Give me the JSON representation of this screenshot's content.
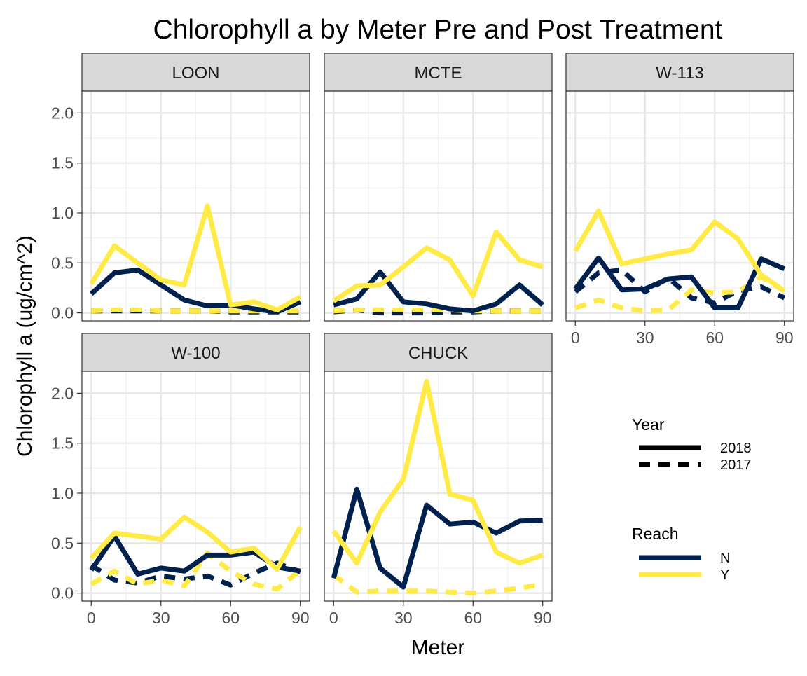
{
  "chart_data": {
    "type": "line",
    "title": "Chlorophyll a by Meter Pre and Post Treatment",
    "xlabel": "Meter",
    "ylabel": "Chlorophyll a (ug/cm^2)",
    "xlim": [
      -4,
      94
    ],
    "ylim": [
      -0.08,
      2.22
    ],
    "x_ticks": [
      0,
      30,
      60,
      90
    ],
    "y_ticks": [
      0.0,
      0.5,
      1.0,
      1.5,
      2.0
    ],
    "x_tick_labels": [
      "0",
      "30",
      "60",
      "90"
    ],
    "y_tick_labels": [
      "0.0",
      "0.5",
      "1.0",
      "1.5",
      "2.0"
    ],
    "grid": true,
    "legend_position": "right",
    "legend": {
      "year": {
        "title": "Year",
        "entries": [
          {
            "label": "2018",
            "style": "solid"
          },
          {
            "label": "2017",
            "style": "dashed"
          }
        ]
      },
      "reach": {
        "title": "Reach",
        "entries": [
          {
            "label": "N",
            "color": "#00204D"
          },
          {
            "label": "Y",
            "color": "#FFEA46"
          }
        ]
      }
    },
    "colors": {
      "N": "#00204D",
      "Y": "#FFEA46"
    },
    "facets": [
      {
        "name": "LOON",
        "series": [
          {
            "reach": "N",
            "year": "2017",
            "x": [
              0,
              10,
              20,
              30,
              40,
              50,
              60,
              70,
              80,
              90
            ],
            "y": [
              0.02,
              0.02,
              0.02,
              0.02,
              0.02,
              0.02,
              0.01,
              0.01,
              0.01,
              0.01
            ]
          },
          {
            "reach": "Y",
            "year": "2017",
            "x": [
              0,
              10,
              20,
              30,
              40,
              50,
              60,
              70,
              80,
              90
            ],
            "y": [
              0.02,
              0.03,
              0.03,
              0.02,
              0.02,
              0.02,
              0.02,
              0.02,
              0.02,
              0.02
            ]
          },
          {
            "reach": "N",
            "year": "2018",
            "x": [
              0,
              10,
              20,
              30,
              40,
              50,
              60,
              70,
              80,
              90
            ],
            "y": [
              0.19,
              0.4,
              0.43,
              0.28,
              0.13,
              0.07,
              0.08,
              0.04,
              0.01,
              0.11
            ]
          },
          {
            "reach": "Y",
            "year": "2018",
            "x": [
              0,
              10,
              20,
              30,
              40,
              50,
              60,
              70,
              80,
              90
            ],
            "y": [
              0.29,
              0.67,
              0.5,
              0.33,
              0.28,
              1.07,
              0.08,
              0.11,
              0.03,
              0.16
            ]
          }
        ]
      },
      {
        "name": "MCTE",
        "series": [
          {
            "reach": "N",
            "year": "2017",
            "x": [
              0,
              10,
              20,
              30,
              40,
              50,
              60,
              70,
              80,
              90
            ],
            "y": [
              0.01,
              0.03,
              0.0,
              0.0,
              0.0,
              0.01,
              0.01,
              0.02,
              0.02,
              0.02
            ]
          },
          {
            "reach": "Y",
            "year": "2017",
            "x": [
              0,
              10,
              20,
              30,
              40,
              50,
              60,
              70,
              80,
              90
            ],
            "y": [
              0.02,
              0.03,
              0.03,
              0.03,
              0.03,
              0.03,
              0.02,
              0.02,
              0.02,
              0.02
            ]
          },
          {
            "reach": "N",
            "year": "2018",
            "x": [
              0,
              10,
              20,
              30,
              40,
              50,
              60,
              70,
              80,
              90
            ],
            "y": [
              0.08,
              0.14,
              0.41,
              0.11,
              0.09,
              0.04,
              0.02,
              0.09,
              0.28,
              0.08
            ]
          },
          {
            "reach": "Y",
            "year": "2018",
            "x": [
              0,
              10,
              20,
              30,
              40,
              50,
              60,
              70,
              80,
              90
            ],
            "y": [
              0.12,
              0.27,
              0.28,
              0.46,
              0.65,
              0.53,
              0.17,
              0.81,
              0.53,
              0.46
            ]
          }
        ]
      },
      {
        "name": "W-113",
        "series": [
          {
            "reach": "N",
            "year": "2017",
            "x": [
              0,
              10,
              20,
              30,
              40,
              50,
              60,
              70,
              80,
              90
            ],
            "y": [
              0.21,
              0.4,
              0.43,
              0.21,
              0.35,
              0.15,
              0.1,
              0.22,
              0.26,
              0.15
            ]
          },
          {
            "reach": "Y",
            "year": "2017",
            "x": [
              0,
              10,
              20,
              30,
              40,
              50,
              60,
              70,
              80,
              90
            ],
            "y": [
              0.05,
              0.13,
              0.05,
              0.02,
              0.03,
              0.23,
              0.2,
              0.21,
              0.36,
              0.22
            ]
          },
          {
            "reach": "N",
            "year": "2018",
            "x": [
              0,
              10,
              20,
              30,
              40,
              50,
              60,
              70,
              80,
              90
            ],
            "y": [
              0.24,
              0.55,
              0.23,
              0.24,
              0.34,
              0.36,
              0.05,
              0.05,
              0.54,
              0.44
            ]
          },
          {
            "reach": "Y",
            "year": "2018",
            "x": [
              0,
              10,
              20,
              30,
              40,
              50,
              60,
              70,
              80,
              90
            ],
            "y": [
              0.62,
              1.02,
              0.49,
              0.54,
              0.59,
              0.63,
              0.91,
              0.74,
              0.38,
              0.22
            ]
          }
        ]
      },
      {
        "name": "W-100",
        "series": [
          {
            "reach": "N",
            "year": "2017",
            "x": [
              0,
              10,
              20,
              30,
              40,
              50,
              60,
              70,
              80,
              90
            ],
            "y": [
              0.28,
              0.13,
              0.1,
              0.17,
              0.14,
              0.17,
              0.08,
              0.2,
              0.3,
              0.21
            ]
          },
          {
            "reach": "Y",
            "year": "2017",
            "x": [
              0,
              10,
              20,
              30,
              40,
              50,
              60,
              70,
              80,
              90
            ],
            "y": [
              0.09,
              0.22,
              0.09,
              0.13,
              0.07,
              0.4,
              0.22,
              0.09,
              0.04,
              0.23
            ]
          },
          {
            "reach": "N",
            "year": "2018",
            "x": [
              0,
              10,
              20,
              30,
              40,
              50,
              60,
              70,
              80,
              90
            ],
            "y": [
              0.23,
              0.57,
              0.19,
              0.25,
              0.22,
              0.38,
              0.38,
              0.41,
              0.26,
              0.22
            ]
          },
          {
            "reach": "Y",
            "year": "2018",
            "x": [
              0,
              10,
              20,
              30,
              40,
              50,
              60,
              70,
              80,
              90
            ],
            "y": [
              0.35,
              0.6,
              0.57,
              0.54,
              0.76,
              0.61,
              0.41,
              0.45,
              0.24,
              0.66
            ]
          }
        ]
      },
      {
        "name": "CHUCK",
        "series": [
          {
            "reach": "Y",
            "year": "2017",
            "x": [
              0,
              10,
              20,
              30,
              40,
              50,
              60,
              70,
              80,
              90
            ],
            "y": [
              0.18,
              0.01,
              0.02,
              0.02,
              0.02,
              0.01,
              0.0,
              0.02,
              0.05,
              0.09
            ]
          },
          {
            "reach": "N",
            "year": "2018",
            "x": [
              0,
              10,
              20,
              30,
              40,
              50,
              60,
              70,
              80,
              90
            ],
            "y": [
              0.15,
              1.04,
              0.25,
              0.06,
              0.88,
              0.69,
              0.71,
              0.6,
              0.72,
              0.73
            ]
          },
          {
            "reach": "Y",
            "year": "2018",
            "x": [
              0,
              10,
              20,
              30,
              40,
              50,
              60,
              70,
              80,
              90
            ],
            "y": [
              0.62,
              0.3,
              0.81,
              1.14,
              2.12,
              0.99,
              0.93,
              0.41,
              0.3,
              0.38
            ]
          }
        ]
      }
    ]
  }
}
